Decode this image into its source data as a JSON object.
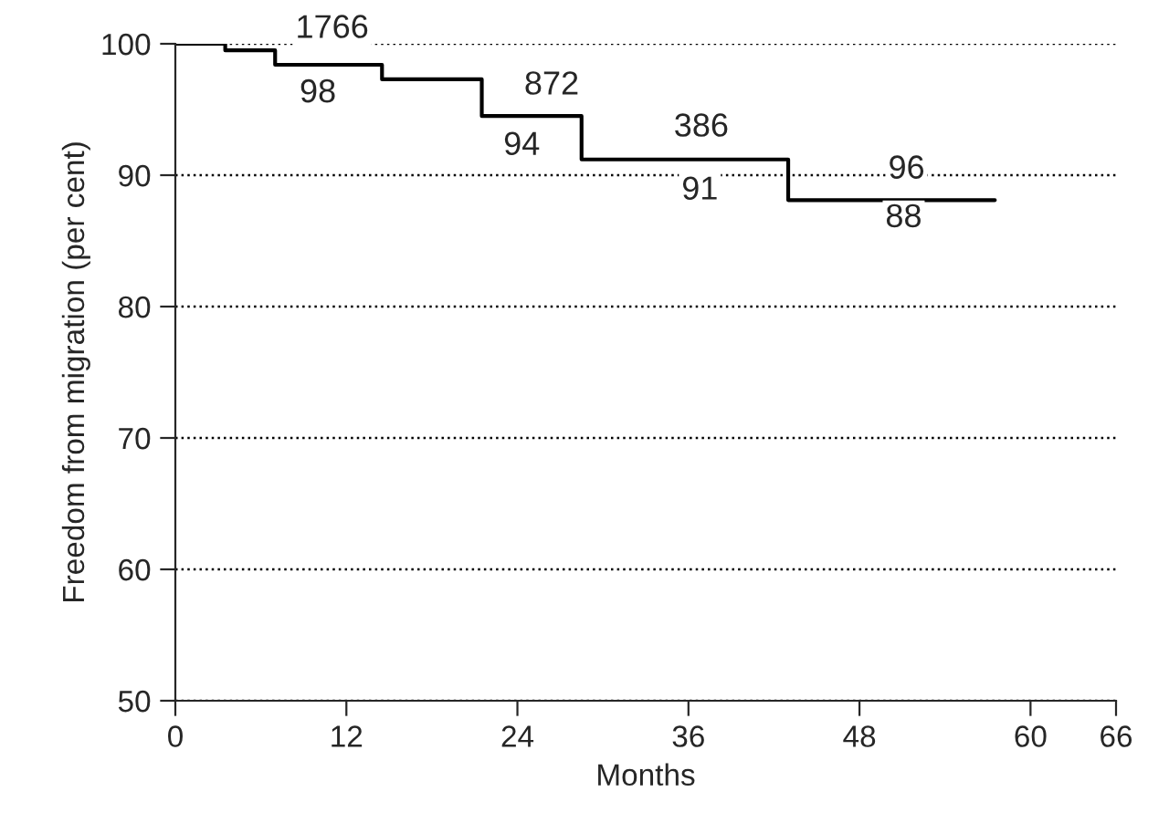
{
  "chart_data": {
    "type": "step",
    "xlabel": "Months",
    "ylabel": "Freedom from migration (per cent)",
    "x": [
      0,
      3.5,
      7,
      14.5,
      21.5,
      28.5,
      43,
      57.5
    ],
    "series": [
      {
        "color": "#000000",
        "values": [
          100,
          99.5,
          98.4,
          97.3,
          94.5,
          91.2,
          88.1,
          88.1
        ]
      }
    ],
    "xlim": [
      0,
      66
    ],
    "xticks": [
      0,
      12,
      24,
      36,
      48,
      60,
      66
    ],
    "ylim": [
      50,
      100
    ],
    "yticks": [
      50,
      60,
      70,
      80,
      90,
      100
    ],
    "grid": "y",
    "legend": false,
    "marker": "none",
    "line_style": "solid",
    "annotations": [
      {
        "text": "1766",
        "x": 11,
        "y": 101.1
      },
      {
        "text": "98",
        "x": 10,
        "y": 96.2
      },
      {
        "text": "872",
        "x": 26.4,
        "y": 96.8
      },
      {
        "text": "94",
        "x": 24.3,
        "y": 92.2
      },
      {
        "text": "386",
        "x": 36.9,
        "y": 93.6
      },
      {
        "text": "91",
        "x": 36.8,
        "y": 88.8
      },
      {
        "text": "96",
        "x": 51.3,
        "y": 90.4
      },
      {
        "text": "88",
        "x": 51.1,
        "y": 86.7
      }
    ]
  }
}
